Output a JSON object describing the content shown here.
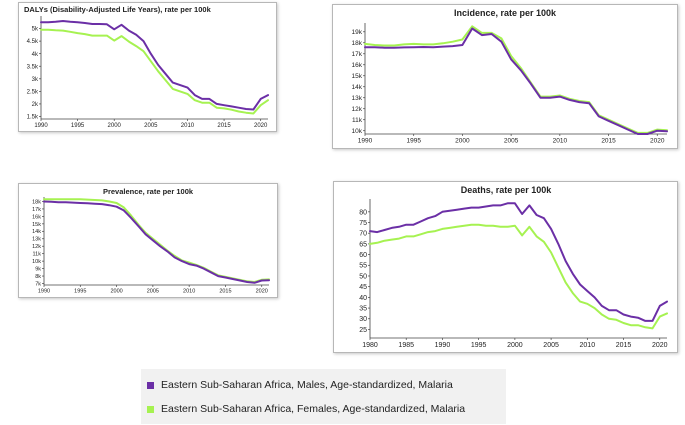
{
  "colors": {
    "males": "#6b2fa6",
    "females": "#a6f251"
  },
  "legend": {
    "males": "Eastern Sub-Saharan Africa, Males, Age-standardized, Malaria",
    "females": "Eastern Sub-Saharan Africa, Females, Age-standardized, Malaria"
  },
  "chart_data": [
    {
      "id": "dalys",
      "type": "line",
      "title": "DALYs (Disability-Adjusted Life Years), rate per 100k",
      "xlim": [
        1990,
        2021
      ],
      "ylim": [
        1400,
        5500
      ],
      "x_ticks": [
        1990,
        1995,
        2000,
        2005,
        2010,
        2015,
        2020
      ],
      "y_ticks": [
        1500,
        2000,
        2500,
        3000,
        3500,
        4000,
        4500,
        5000
      ],
      "y_tick_labels": [
        "1.5k",
        "2k",
        "2.5k",
        "3k",
        "3.5k",
        "4k",
        "4.5k",
        "5k"
      ],
      "x": [
        1990,
        1991,
        1992,
        1993,
        1994,
        1995,
        1996,
        1997,
        1998,
        1999,
        2000,
        2001,
        2002,
        2003,
        2004,
        2005,
        2006,
        2007,
        2008,
        2009,
        2010,
        2011,
        2012,
        2013,
        2014,
        2015,
        2016,
        2017,
        2018,
        2019,
        2020,
        2021
      ],
      "series": [
        {
          "name": "Males",
          "values": [
            5250,
            5250,
            5270,
            5300,
            5270,
            5250,
            5220,
            5180,
            5180,
            5170,
            4970,
            5150,
            4920,
            4750,
            4500,
            4000,
            3550,
            3200,
            2850,
            2750,
            2650,
            2350,
            2200,
            2200,
            2000,
            1950,
            1900,
            1850,
            1800,
            1780,
            2200,
            2350
          ]
        },
        {
          "name": "Females",
          "values": [
            4950,
            4950,
            4930,
            4920,
            4870,
            4820,
            4780,
            4720,
            4720,
            4720,
            4520,
            4700,
            4480,
            4300,
            4100,
            3700,
            3300,
            2950,
            2600,
            2500,
            2400,
            2150,
            2050,
            2050,
            1850,
            1820,
            1770,
            1700,
            1650,
            1620,
            1950,
            2150
          ]
        }
      ]
    },
    {
      "id": "incidence",
      "type": "line",
      "title": "Incidence, rate per 100k",
      "xlim": [
        1990,
        2021
      ],
      "ylim": [
        9700,
        19800
      ],
      "x_ticks": [
        1990,
        1995,
        2000,
        2005,
        2010,
        2015,
        2020
      ],
      "y_ticks": [
        10000,
        11000,
        12000,
        13000,
        14000,
        15000,
        16000,
        17000,
        18000,
        19000
      ],
      "y_tick_labels": [
        "10k",
        "11k",
        "12k",
        "13k",
        "14k",
        "15k",
        "16k",
        "17k",
        "18k",
        "19k"
      ],
      "x": [
        1990,
        1991,
        1992,
        1993,
        1994,
        1995,
        1996,
        1997,
        1998,
        1999,
        2000,
        2001,
        2002,
        2003,
        2004,
        2005,
        2006,
        2007,
        2008,
        2009,
        2010,
        2011,
        2012,
        2013,
        2014,
        2015,
        2016,
        2017,
        2018,
        2019,
        2020,
        2021
      ],
      "series": [
        {
          "name": "Males",
          "values": [
            17600,
            17600,
            17550,
            17550,
            17580,
            17600,
            17620,
            17600,
            17650,
            17700,
            17800,
            19300,
            18700,
            18800,
            18100,
            16500,
            15500,
            14300,
            13000,
            13000,
            13100,
            12800,
            12600,
            12500,
            11300,
            10900,
            10500,
            10100,
            9700,
            9700,
            10000,
            9950
          ]
        },
        {
          "name": "Females",
          "values": [
            17900,
            17800,
            17750,
            17750,
            17850,
            17900,
            17850,
            17850,
            17950,
            18100,
            18300,
            19500,
            18900,
            18900,
            18400,
            16800,
            15700,
            14400,
            13100,
            13100,
            13200,
            12900,
            12700,
            12600,
            11400,
            11000,
            10600,
            10200,
            9800,
            9800,
            10100,
            10050
          ]
        }
      ]
    },
    {
      "id": "prevalence",
      "type": "line",
      "title": "Prevalence, rate per 100k",
      "xlim": [
        1990,
        2021
      ],
      "ylim": [
        6800,
        18600
      ],
      "x_ticks": [
        1990,
        1995,
        2000,
        2005,
        2010,
        2015,
        2020
      ],
      "y_ticks": [
        7000,
        8000,
        9000,
        10000,
        11000,
        12000,
        13000,
        14000,
        15000,
        16000,
        17000,
        18000
      ],
      "y_tick_labels": [
        "7k",
        "8k",
        "9k",
        "10k",
        "11k",
        "12k",
        "13k",
        "14k",
        "15k",
        "16k",
        "17k",
        "18k"
      ],
      "x": [
        1990,
        1991,
        1992,
        1993,
        1994,
        1995,
        1996,
        1997,
        1998,
        1999,
        2000,
        2001,
        2002,
        2003,
        2004,
        2005,
        2006,
        2007,
        2008,
        2009,
        2010,
        2011,
        2012,
        2013,
        2014,
        2015,
        2016,
        2017,
        2018,
        2019,
        2020,
        2021
      ],
      "series": [
        {
          "name": "Males",
          "values": [
            18000,
            17950,
            17900,
            17900,
            17850,
            17800,
            17750,
            17700,
            17650,
            17500,
            17300,
            16800,
            15800,
            14700,
            13600,
            12800,
            12000,
            11300,
            10500,
            10000,
            9600,
            9400,
            9000,
            8500,
            8000,
            7800,
            7600,
            7400,
            7200,
            7100,
            7400,
            7450
          ]
        },
        {
          "name": "Females",
          "values": [
            18300,
            18300,
            18300,
            18300,
            18300,
            18300,
            18250,
            18200,
            18150,
            18000,
            17800,
            17200,
            16100,
            14900,
            13800,
            13000,
            12200,
            11400,
            10700,
            10100,
            9800,
            9500,
            9100,
            8600,
            8100,
            7900,
            7700,
            7500,
            7300,
            7200,
            7500,
            7550
          ]
        }
      ]
    },
    {
      "id": "deaths",
      "type": "line",
      "title": "Deaths, rate per 100k",
      "xlim": [
        1980,
        2021
      ],
      "ylim": [
        21,
        86
      ],
      "x_ticks": [
        1980,
        1985,
        1990,
        1995,
        2000,
        2005,
        2010,
        2015,
        2020
      ],
      "y_ticks": [
        25,
        30,
        35,
        40,
        45,
        50,
        55,
        60,
        65,
        70,
        75,
        80
      ],
      "y_tick_labels": [
        "25",
        "30",
        "35",
        "40",
        "45",
        "50",
        "55",
        "60",
        "65",
        "70",
        "75",
        "80"
      ],
      "x": [
        1980,
        1981,
        1982,
        1983,
        1984,
        1985,
        1986,
        1987,
        1988,
        1989,
        1990,
        1991,
        1992,
        1993,
        1994,
        1995,
        1996,
        1997,
        1998,
        1999,
        2000,
        2001,
        2002,
        2003,
        2004,
        2005,
        2006,
        2007,
        2008,
        2009,
        2010,
        2011,
        2012,
        2013,
        2014,
        2015,
        2016,
        2017,
        2018,
        2019,
        2020,
        2021
      ],
      "series": [
        {
          "name": "Males",
          "values": [
            71,
            70.5,
            71.5,
            72.5,
            73,
            74,
            74,
            75.5,
            77,
            78,
            80,
            80.5,
            81,
            81.5,
            82,
            82,
            82.5,
            83,
            83,
            84,
            84,
            79,
            83,
            78.5,
            77,
            72,
            65,
            57,
            51,
            46,
            43,
            40,
            36,
            34,
            34,
            32,
            31,
            30.5,
            29,
            29,
            36,
            38
          ]
        },
        {
          "name": "Females",
          "values": [
            65,
            65.5,
            66.5,
            67,
            67.5,
            68.5,
            68.5,
            69.5,
            70.5,
            71,
            72,
            72.5,
            73,
            73.5,
            74,
            74,
            73.5,
            73.5,
            73,
            73,
            73.5,
            69,
            73,
            68.5,
            66,
            61,
            54,
            47,
            42,
            38,
            37,
            35,
            32,
            30,
            29.5,
            28,
            27,
            27,
            26,
            25.5,
            31,
            32.5
          ]
        }
      ]
    }
  ]
}
